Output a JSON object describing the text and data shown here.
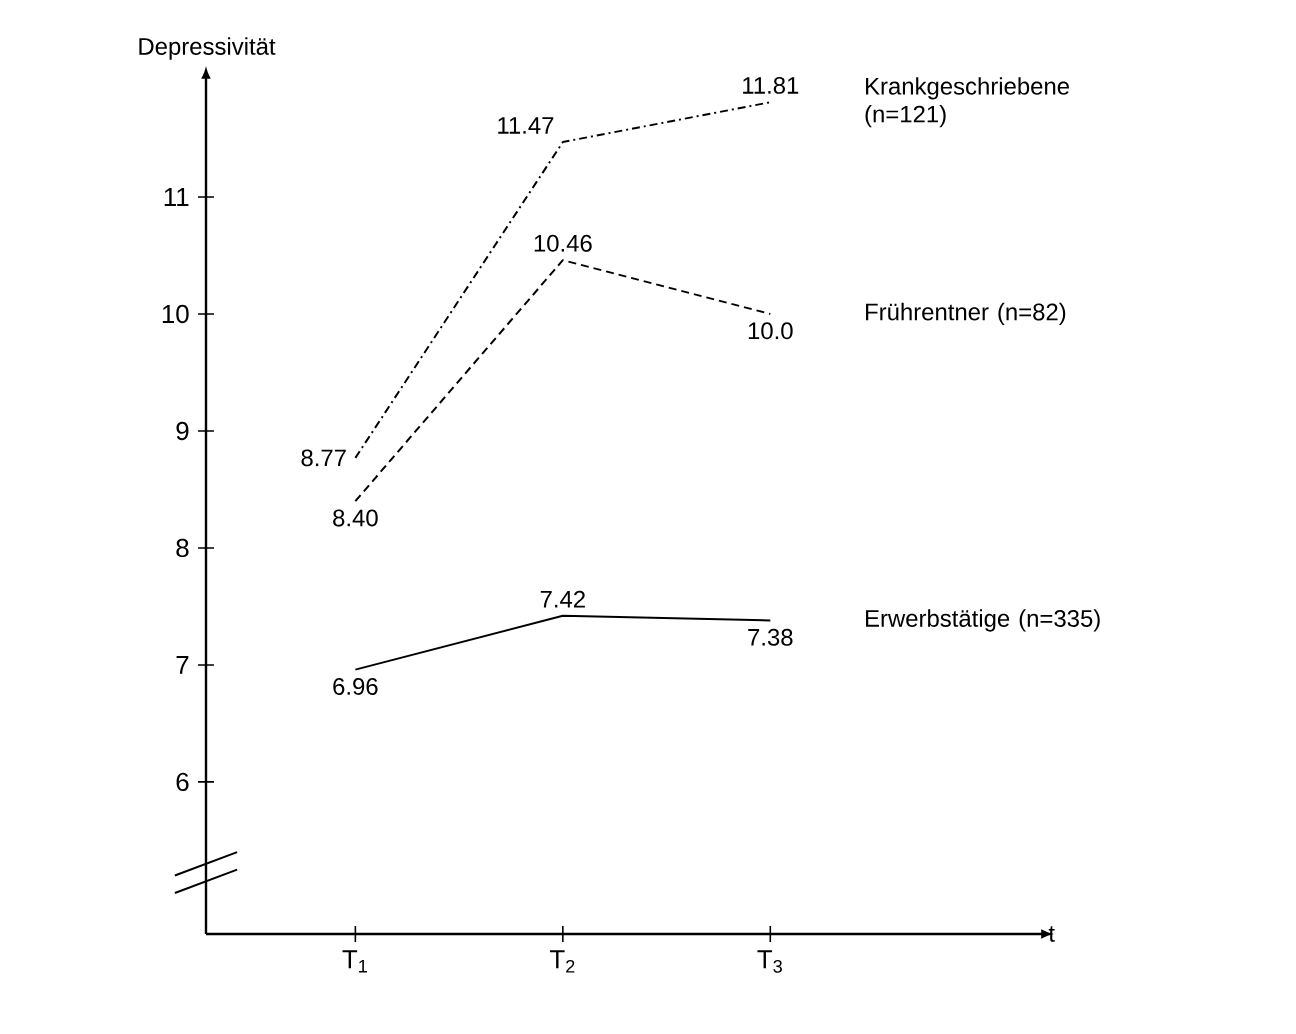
{
  "chart_data": {
    "type": "line",
    "xlabel": "t",
    "ylabel": "Depressivität",
    "categories": [
      "T$_{1}$",
      "T$_{2}$",
      "T$_{3}$"
    ],
    "ylim": [
      4.7,
      12
    ],
    "yticks": [
      6,
      7,
      8,
      9,
      10,
      11
    ],
    "legend": false,
    "grid": false,
    "marker": "none",
    "series": [
      {
        "name": "Krankgeschriebene (n=121)",
        "color": "#000000",
        "line_style": "dashdot",
        "values": [
          8.77,
          11.47,
          11.81
        ],
        "value_labels": [
          "8.77",
          "11.47",
          "11.81"
        ]
      },
      {
        "name": "Frührentner (n=82)",
        "color": "#000000",
        "line_style": "dashed",
        "values": [
          8.4,
          10.46,
          10.0
        ],
        "value_labels": [
          "8.40",
          "10.46",
          "10.0"
        ]
      },
      {
        "name": "Erwerbstätige (n=335)",
        "color": "#000000",
        "line_style": "solid",
        "values": [
          6.96,
          7.42,
          7.38
        ],
        "value_labels": [
          "6.96",
          "7.42",
          "7.38"
        ]
      }
    ]
  }
}
